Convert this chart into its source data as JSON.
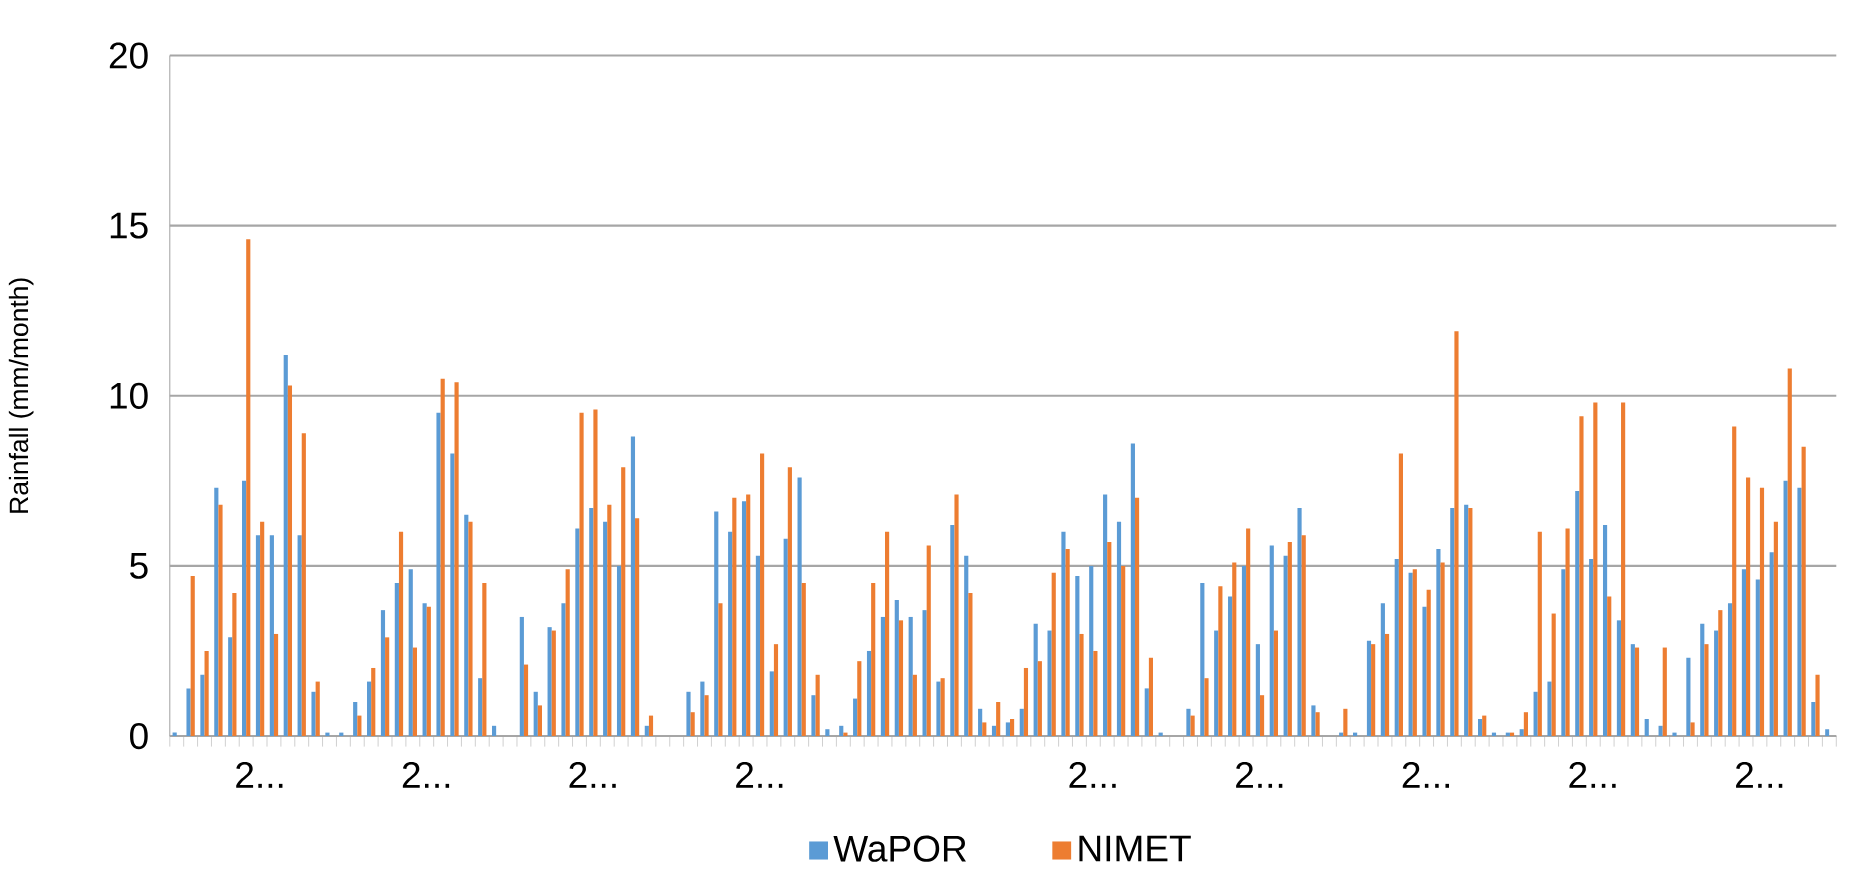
{
  "chart_data": {
    "type": "bar",
    "ylabel": "Rainfall (mm/month)",
    "categories": [
      null,
      null,
      null,
      null,
      null,
      null,
      "2...",
      null,
      null,
      null,
      null,
      null,
      null,
      null,
      null,
      null,
      null,
      null,
      "2...",
      null,
      null,
      null,
      null,
      null,
      null,
      null,
      null,
      null,
      null,
      null,
      "2...",
      null,
      null,
      null,
      null,
      null,
      null,
      null,
      null,
      null,
      null,
      null,
      "2...",
      null,
      null,
      null,
      null,
      null,
      null,
      null,
      null,
      null,
      null,
      null,
      null,
      null,
      null,
      null,
      null,
      null,
      null,
      null,
      null,
      null,
      null,
      null,
      "2...",
      null,
      null,
      null,
      null,
      null,
      null,
      null,
      null,
      null,
      null,
      null,
      "2...",
      null,
      null,
      null,
      null,
      null,
      null,
      null,
      null,
      null,
      null,
      null,
      "2...",
      null,
      null,
      null,
      null,
      null,
      null,
      null,
      null,
      null,
      null,
      null,
      "2...",
      null,
      null,
      null,
      null,
      null,
      null,
      null,
      null,
      null,
      null,
      null,
      "2...",
      null,
      null,
      null,
      null,
      null
    ],
    "series": [
      {
        "name": "WaPOR",
        "color": "#5b9bd5",
        "values": [
          0.1,
          1.4,
          1.8,
          7.3,
          2.9,
          7.5,
          5.9,
          5.9,
          11.2,
          5.9,
          1.3,
          0.1,
          0.1,
          1.0,
          1.6,
          3.7,
          4.5,
          4.9,
          3.9,
          9.5,
          8.3,
          6.5,
          1.7,
          0.3,
          0,
          3.5,
          1.3,
          3.2,
          3.9,
          6.1,
          6.7,
          6.3,
          5.0,
          8.8,
          0.3,
          0,
          0,
          1.3,
          1.6,
          6.6,
          6.0,
          6.9,
          5.3,
          1.9,
          5.8,
          7.6,
          1.2,
          0.2,
          0.3,
          1.1,
          2.5,
          3.5,
          4.0,
          3.5,
          3.7,
          1.6,
          6.2,
          5.3,
          0.8,
          0.3,
          0.4,
          0.8,
          3.3,
          3.1,
          6.0,
          4.7,
          5.0,
          7.1,
          6.3,
          8.6,
          1.4,
          0.1,
          0,
          0.8,
          4.5,
          3.1,
          4.1,
          5.0,
          2.7,
          5.6,
          5.3,
          6.7,
          0.9,
          0,
          0.1,
          0.1,
          2.8,
          3.9,
          5.2,
          4.8,
          3.8,
          5.5,
          6.7,
          6.8,
          0.5,
          0.1,
          0.1,
          0.2,
          1.3,
          1.6,
          4.9,
          7.2,
          5.2,
          6.2,
          3.4,
          2.7,
          0.5,
          0.3,
          0.1,
          2.3,
          3.3,
          3.1,
          3.9,
          4.9,
          4.6,
          5.4,
          7.5,
          7.3,
          1.0,
          0.2
        ]
      },
      {
        "name": "NIMET",
        "color": "#ed7d31",
        "values": [
          0,
          4.7,
          2.5,
          6.8,
          4.2,
          14.6,
          6.3,
          3.0,
          10.3,
          8.9,
          1.6,
          0,
          0,
          0.6,
          2.0,
          2.9,
          6.0,
          2.6,
          3.8,
          10.5,
          10.4,
          6.3,
          4.5,
          0,
          0,
          2.1,
          0.9,
          3.1,
          4.9,
          9.5,
          9.6,
          6.8,
          7.9,
          6.4,
          0.6,
          0,
          0,
          0.7,
          1.2,
          3.9,
          7.0,
          7.1,
          8.3,
          2.7,
          7.9,
          4.5,
          1.8,
          0,
          0.1,
          2.2,
          4.5,
          6.0,
          3.4,
          1.8,
          5.6,
          1.7,
          7.1,
          4.2,
          0.4,
          1.0,
          0.5,
          2.0,
          2.2,
          4.8,
          5.5,
          3.0,
          2.5,
          5.7,
          5.0,
          7.0,
          2.3,
          0,
          0,
          0.6,
          1.7,
          4.4,
          5.1,
          6.1,
          1.2,
          3.1,
          5.7,
          5.9,
          0.7,
          0,
          0.8,
          0,
          2.7,
          3.0,
          8.3,
          4.9,
          4.3,
          5.1,
          11.9,
          6.7,
          0.6,
          0,
          0.1,
          0.7,
          6.0,
          3.6,
          6.1,
          9.4,
          9.8,
          4.1,
          9.8,
          2.6,
          0,
          2.6,
          0,
          0.4,
          2.7,
          3.7,
          9.1,
          7.6,
          7.3,
          6.3,
          10.8,
          8.5,
          1.8,
          0
        ]
      }
    ],
    "ylim": [
      0,
      20
    ],
    "yticks": [
      0,
      5,
      10,
      15,
      20
    ],
    "grid": "y",
    "legend": "bottom"
  }
}
